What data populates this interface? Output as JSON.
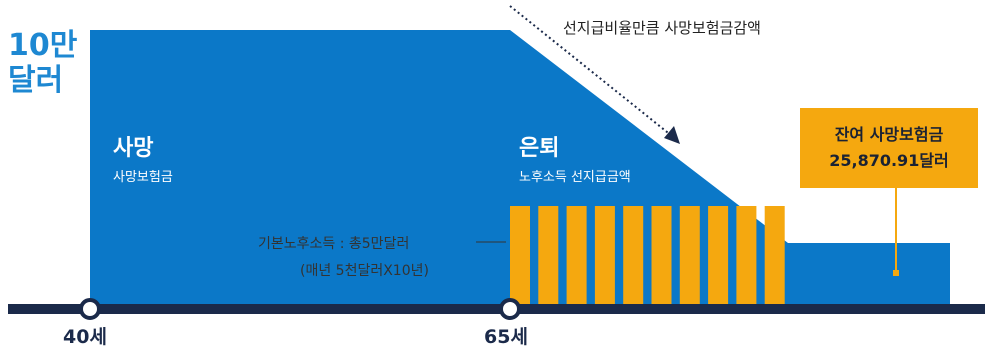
{
  "y_axis": {
    "max_label_line1": "10만",
    "max_label_line2": "달러"
  },
  "annotation": {
    "text": "선지급비율만큼 사망보험금감액"
  },
  "death": {
    "title": "사망",
    "subtitle": "사망보험금"
  },
  "retirement": {
    "title": "은퇴",
    "subtitle": "노후소득 선지급금액"
  },
  "basic_income": {
    "line1": "기본노후소득 : 총5만달러",
    "line2": "(매년 5천달러X10년)"
  },
  "remaining": {
    "line1": "잔여 사망보험금",
    "line2": "25,870.91달러"
  },
  "timeline": {
    "age_start": "40세",
    "age_retire": "65세"
  },
  "income_years": 10,
  "colors": {
    "blue": "#0b78c8",
    "orange": "#f5a80f",
    "navy": "#1b2a4a",
    "label_blue": "#1e88d2"
  }
}
